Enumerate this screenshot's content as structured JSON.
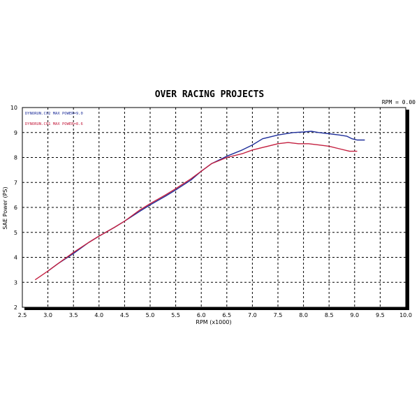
{
  "chart_data": {
    "type": "line",
    "title": "OVER RACING PROJECTS",
    "rpm_readout": "RPM = 0.00",
    "xlabel": "RPM (x1000)",
    "ylabel": "SAE Power (PS)",
    "xlim": [
      2.5,
      10.0
    ],
    "ylim": [
      2,
      10
    ],
    "x_ticks": [
      "2.5",
      "3.0",
      "3.5",
      "4.0",
      "4.5",
      "5.0",
      "5.5",
      "6.0",
      "6.5",
      "7.0",
      "7.5",
      "8.0",
      "8.5",
      "9.0",
      "9.5",
      "10.0"
    ],
    "y_ticks": [
      "2",
      "3",
      "4",
      "5",
      "6",
      "7",
      "8",
      "9",
      "10"
    ],
    "grid": true,
    "legend_position": "top-left",
    "series": [
      {
        "name": "DYNORUN.C02 MAX POWER=9.0",
        "color": "#1f2f9a",
        "x": [
          3.0,
          3.2,
          3.5,
          3.8,
          4.0,
          4.3,
          4.5,
          4.8,
          5.0,
          5.3,
          5.5,
          5.8,
          6.0,
          6.2,
          6.5,
          6.8,
          7.0,
          7.2,
          7.5,
          7.8,
          8.0,
          8.15,
          8.3,
          8.5,
          8.7,
          8.85,
          8.95,
          9.05,
          9.2
        ],
        "values": [
          3.45,
          3.75,
          4.15,
          4.6,
          4.85,
          5.2,
          5.45,
          5.85,
          6.1,
          6.45,
          6.7,
          7.1,
          7.45,
          7.75,
          8.05,
          8.3,
          8.5,
          8.75,
          8.9,
          9.0,
          9.02,
          9.05,
          9.0,
          8.95,
          8.9,
          8.85,
          8.75,
          8.7,
          8.7
        ]
      },
      {
        "name": "DYNORUN.C01 MAX POWER=8.6",
        "color": "#c42040",
        "x": [
          2.75,
          3.0,
          3.2,
          3.5,
          3.8,
          4.0,
          4.3,
          4.5,
          4.8,
          5.0,
          5.3,
          5.5,
          5.8,
          6.0,
          6.2,
          6.5,
          6.8,
          7.0,
          7.2,
          7.5,
          7.7,
          7.9,
          8.1,
          8.3,
          8.5,
          8.7,
          8.9,
          9.05
        ],
        "values": [
          3.1,
          3.45,
          3.75,
          4.2,
          4.6,
          4.85,
          5.2,
          5.45,
          5.9,
          6.15,
          6.5,
          6.75,
          7.15,
          7.45,
          7.75,
          8.0,
          8.15,
          8.3,
          8.4,
          8.55,
          8.6,
          8.55,
          8.55,
          8.5,
          8.45,
          8.35,
          8.25,
          8.25
        ]
      }
    ]
  }
}
